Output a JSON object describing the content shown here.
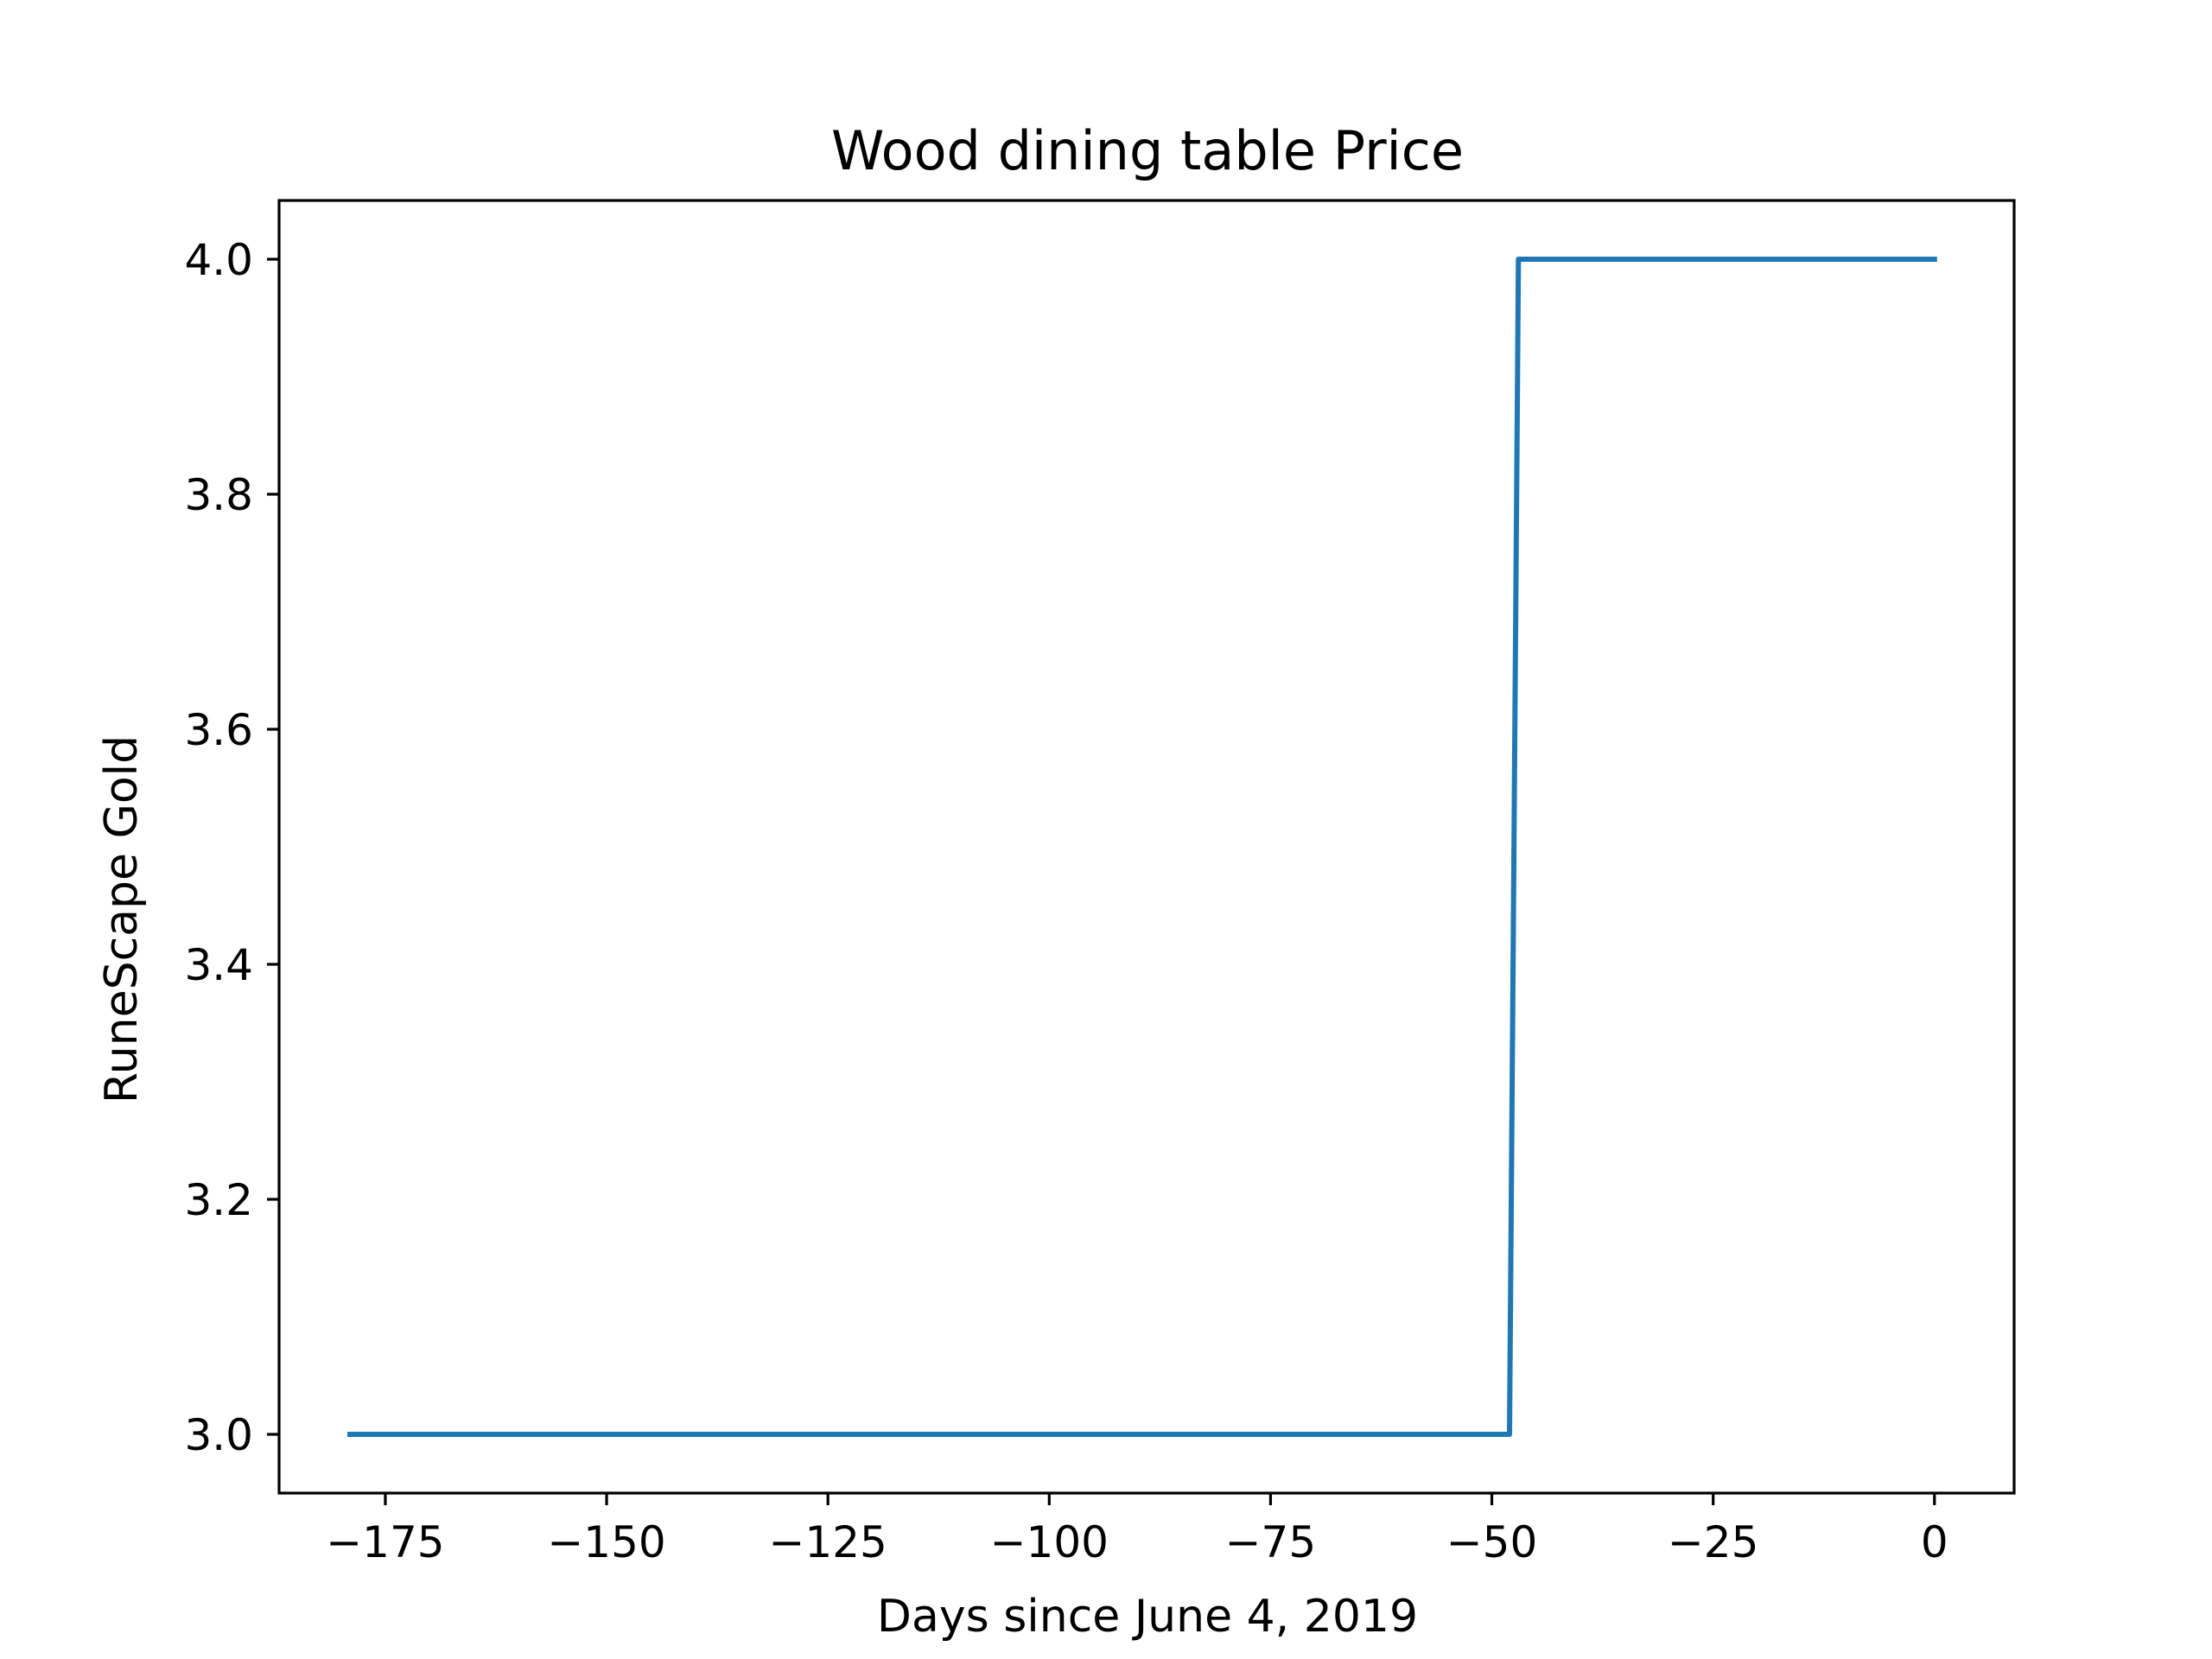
{
  "chart_data": {
    "type": "line",
    "title": "Wood dining table Price",
    "xlabel": "Days since June 4, 2019",
    "ylabel": "RuneScape Gold",
    "xlim": [
      -187,
      9
    ],
    "ylim": [
      2.95,
      4.05
    ],
    "x_ticks": [
      -175,
      -150,
      -125,
      -100,
      -75,
      -50,
      -25,
      0
    ],
    "x_tick_labels": [
      "−175",
      "−150",
      "−125",
      "−100",
      "−75",
      "−50",
      "−25",
      "0"
    ],
    "y_ticks": [
      3.0,
      3.2,
      3.4,
      3.6,
      3.8,
      4.0
    ],
    "y_tick_labels": [
      "3.0",
      "3.2",
      "3.4",
      "3.6",
      "3.8",
      "4.0"
    ],
    "grid": false,
    "series": [
      {
        "color": "#1f77b4",
        "x": [
          -179,
          -48,
          -47,
          0
        ],
        "y": [
          3.0,
          3.0,
          4.0,
          4.0
        ]
      }
    ]
  }
}
